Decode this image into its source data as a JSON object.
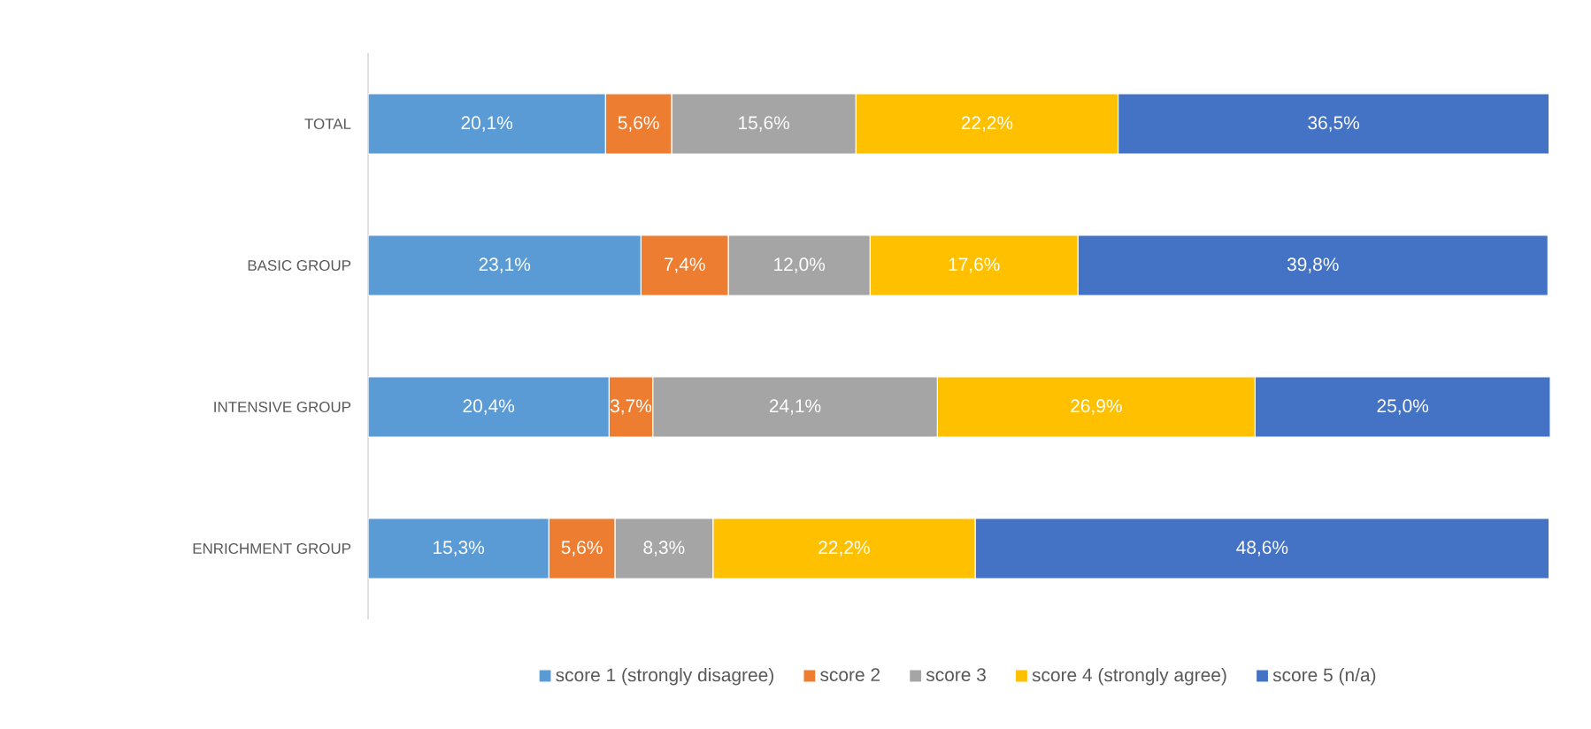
{
  "chart_data": {
    "type": "bar",
    "orientation": "horizontal",
    "stacked": true,
    "categories": [
      "TOTAL",
      "BASIC GROUP",
      "INTENSIVE GROUP",
      "ENRICHMENT GROUP"
    ],
    "tick_labels": "y",
    "legend": "bottom",
    "series": [
      {
        "name": "score 1 (strongly disagree)",
        "color": "#5b9bd5",
        "values": [
          20.1,
          23.1,
          20.4,
          15.3
        ],
        "value_labels": [
          "20,1%",
          "23,1%",
          "20,4%",
          "15,3%"
        ]
      },
      {
        "name": "score 2",
        "color": "#ed7d31",
        "values": [
          5.6,
          7.4,
          3.7,
          5.6
        ],
        "value_labels": [
          "5,6%",
          "7,4%",
          "3,7%",
          "5,6%"
        ]
      },
      {
        "name": "score 3",
        "color": "#a5a5a5",
        "values": [
          15.6,
          12.0,
          24.1,
          8.3
        ],
        "value_labels": [
          "15,6%",
          "12,0%",
          "24,1%",
          "8,3%"
        ]
      },
      {
        "name": "score 4 (strongly agree)",
        "color": "#ffc000",
        "values": [
          22.2,
          17.6,
          26.9,
          22.2
        ],
        "value_labels": [
          "22,2%",
          "17,6%",
          "26,9%",
          "22,2%"
        ]
      },
      {
        "name": "score 5 (n/a)",
        "color": "#4472c4",
        "values": [
          36.5,
          39.8,
          25.0,
          48.6
        ],
        "value_labels": [
          "36,5%",
          "39,8%",
          "25,0%",
          "48,6%"
        ]
      }
    ]
  }
}
